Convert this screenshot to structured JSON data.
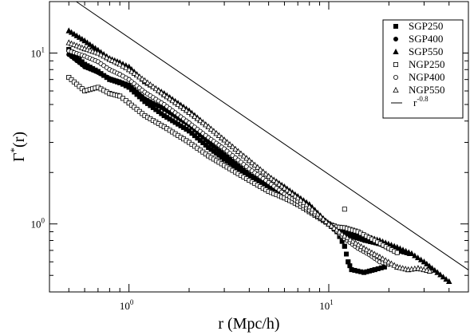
{
  "chart_data": {
    "type": "scatter",
    "title": "",
    "xlabel": "r (Mpc/h)",
    "ylabel": "Γ*(r)",
    "x_scale": "log",
    "y_scale": "log",
    "xlim": [
      0.4,
      50
    ],
    "ylim": [
      0.4,
      20
    ],
    "x_ticks": [
      {
        "value": 1,
        "label_base": "10",
        "label_exp": "0"
      },
      {
        "value": 10,
        "label_base": "10",
        "label_exp": "1"
      }
    ],
    "y_ticks": [
      {
        "value": 1,
        "label_base": "10",
        "label_exp": "0"
      },
      {
        "value": 10,
        "label_base": "10",
        "label_exp": "1"
      }
    ],
    "grid": false,
    "legend_position": "top-right",
    "series": [
      {
        "name": "SGP250",
        "marker": "filled-square",
        "points": [
          [
            0.5,
            10.5
          ],
          [
            0.6,
            8.6
          ],
          [
            0.7,
            7.8
          ],
          [
            0.8,
            7.0
          ],
          [
            0.9,
            6.7
          ],
          [
            1.0,
            6.3
          ],
          [
            1.2,
            5.2
          ],
          [
            1.5,
            4.3
          ],
          [
            2.0,
            3.5
          ],
          [
            2.5,
            2.8
          ],
          [
            3.0,
            2.4
          ],
          [
            4.0,
            1.85
          ],
          [
            5.0,
            1.6
          ],
          [
            6.0,
            1.43
          ],
          [
            7.0,
            1.3
          ],
          [
            8.0,
            1.18
          ],
          [
            10.0,
            1.0
          ],
          [
            11.0,
            0.9
          ],
          [
            12.0,
            0.74
          ],
          [
            12.5,
            0.6
          ],
          [
            13.0,
            0.54
          ],
          [
            15.0,
            0.52
          ],
          [
            17.0,
            0.54
          ],
          [
            19.0,
            0.56
          ]
        ]
      },
      {
        "name": "SGP400",
        "marker": "filled-circle",
        "points": [
          [
            0.5,
            9.8
          ],
          [
            0.6,
            8.3
          ],
          [
            0.7,
            7.7
          ],
          [
            0.8,
            7.1
          ],
          [
            0.9,
            6.8
          ],
          [
            1.0,
            6.5
          ],
          [
            1.2,
            5.4
          ],
          [
            1.5,
            4.7
          ],
          [
            2.0,
            3.8
          ],
          [
            2.5,
            3.0
          ],
          [
            3.0,
            2.55
          ],
          [
            4.0,
            1.95
          ],
          [
            5.0,
            1.65
          ],
          [
            6.0,
            1.48
          ],
          [
            7.0,
            1.33
          ],
          [
            8.0,
            1.2
          ],
          [
            10.0,
            1.0
          ],
          [
            12.0,
            0.87
          ],
          [
            15.0,
            0.8
          ],
          [
            18.0,
            0.76
          ],
          [
            20.0,
            0.72
          ],
          [
            25.0,
            0.67
          ]
        ]
      },
      {
        "name": "SGP550",
        "marker": "filled-triangle",
        "points": [
          [
            0.5,
            13.5
          ],
          [
            0.6,
            11.8
          ],
          [
            0.7,
            10.4
          ],
          [
            0.8,
            9.3
          ],
          [
            0.9,
            8.8
          ],
          [
            1.0,
            8.3
          ],
          [
            1.2,
            6.8
          ],
          [
            1.5,
            5.8
          ],
          [
            2.0,
            4.6
          ],
          [
            2.5,
            3.7
          ],
          [
            3.0,
            3.1
          ],
          [
            4.0,
            2.35
          ],
          [
            5.0,
            1.9
          ],
          [
            6.0,
            1.65
          ],
          [
            7.0,
            1.45
          ],
          [
            8.0,
            1.3
          ],
          [
            10.0,
            1.0
          ],
          [
            12.0,
            0.9
          ],
          [
            15.0,
            0.85
          ],
          [
            18.0,
            0.8
          ],
          [
            22.0,
            0.73
          ],
          [
            26.0,
            0.67
          ],
          [
            30.0,
            0.6
          ],
          [
            35.0,
            0.52
          ],
          [
            40.0,
            0.46
          ]
        ]
      },
      {
        "name": "NGP250",
        "marker": "open-square",
        "points": [
          [
            0.5,
            7.2
          ],
          [
            0.6,
            6.0
          ],
          [
            0.7,
            6.3
          ],
          [
            0.8,
            5.8
          ],
          [
            0.9,
            5.6
          ],
          [
            1.0,
            5.1
          ],
          [
            1.2,
            4.3
          ],
          [
            1.5,
            3.7
          ],
          [
            2.0,
            3.0
          ],
          [
            2.5,
            2.5
          ],
          [
            3.0,
            2.2
          ],
          [
            4.0,
            1.8
          ],
          [
            5.0,
            1.55
          ],
          [
            6.0,
            1.42
          ],
          [
            7.0,
            1.3
          ],
          [
            8.0,
            1.18
          ],
          [
            10.0,
            1.0
          ],
          [
            11.0,
            0.96
          ],
          [
            12.0,
            0.95
          ],
          [
            14.0,
            0.9
          ],
          [
            17.0,
            0.8
          ],
          [
            20.0,
            0.72
          ],
          [
            22.0,
            0.68
          ]
        ]
      },
      {
        "name": "NGP400",
        "marker": "open-circle",
        "points": [
          [
            0.5,
            10.3
          ],
          [
            0.6,
            9.6
          ],
          [
            0.7,
            8.9
          ],
          [
            0.8,
            8.0
          ],
          [
            0.9,
            7.5
          ],
          [
            1.0,
            7.0
          ],
          [
            1.2,
            5.9
          ],
          [
            1.5,
            5.0
          ],
          [
            2.0,
            3.9
          ],
          [
            2.5,
            3.2
          ],
          [
            3.0,
            2.75
          ],
          [
            4.0,
            2.1
          ],
          [
            5.0,
            1.75
          ],
          [
            6.0,
            1.5
          ],
          [
            7.0,
            1.35
          ],
          [
            8.0,
            1.2
          ],
          [
            10.0,
            1.0
          ],
          [
            12.0,
            0.82
          ],
          [
            14.0,
            0.72
          ],
          [
            16.0,
            0.66
          ],
          [
            18.0,
            0.6
          ],
          [
            20.0,
            0.58
          ]
        ]
      },
      {
        "name": "NGP550",
        "marker": "open-triangle",
        "points": [
          [
            0.5,
            11.5
          ],
          [
            0.6,
            10.6
          ],
          [
            0.7,
            10.0
          ],
          [
            0.8,
            9.2
          ],
          [
            0.9,
            8.6
          ],
          [
            1.0,
            8.0
          ],
          [
            1.2,
            6.9
          ],
          [
            1.5,
            5.7
          ],
          [
            2.0,
            4.5
          ],
          [
            2.5,
            3.7
          ],
          [
            3.0,
            3.1
          ],
          [
            4.0,
            2.35
          ],
          [
            5.0,
            1.9
          ],
          [
            6.0,
            1.62
          ],
          [
            7.0,
            1.42
          ],
          [
            8.0,
            1.26
          ],
          [
            10.0,
            1.0
          ],
          [
            12.0,
            0.85
          ],
          [
            15.0,
            0.72
          ],
          [
            18.0,
            0.64
          ],
          [
            22.0,
            0.56
          ],
          [
            25.0,
            0.54
          ],
          [
            28.0,
            0.55
          ],
          [
            32.0,
            0.53
          ]
        ]
      }
    ],
    "reference_line": {
      "name": "r",
      "name_exp": "-0.8",
      "coefficient": 12.3,
      "exponent": -0.8
    },
    "outlier_points": [
      {
        "series": "NGP250",
        "x": 12.0,
        "y": 1.22
      }
    ]
  }
}
